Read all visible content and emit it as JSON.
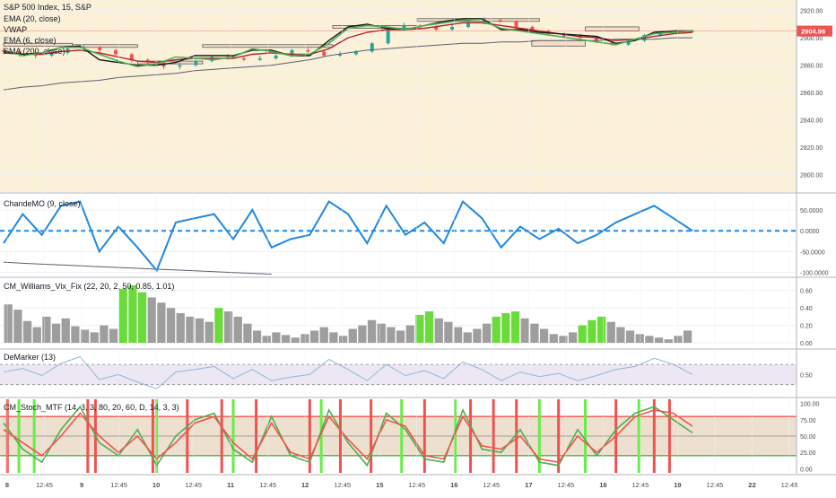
{
  "colors": {
    "price_bg": "#fbf1d9",
    "panel_bg": "#ffffff",
    "grid": "#eef0f3",
    "border": "#b2b5be",
    "text": "#131722",
    "axis_text": "#4a4e59",
    "ema20": "#b7202a",
    "vwap": "#13151d",
    "ema6": "#4caf50",
    "sma200": "#5a5e6e",
    "candle_up": "#26a69a",
    "candle_down": "#ef5350",
    "price_tag": "#ef5350",
    "chande": "#2188e0",
    "vix_gray": "#9e9e9e",
    "vix_green": "#6bdb3c",
    "demarker": "#8fb6d8",
    "demarker_band": "#ece7f3",
    "stoch_k": "#4caf50",
    "stoch_d": "#ef5350",
    "stoch_band": "#ede0cf",
    "stoch_red_bar": "#ef5350",
    "stoch_green_bar": "#66ee44"
  },
  "x_axis": {
    "labels": [
      "8",
      "12:45",
      "9",
      "12:45",
      "10",
      "12:45",
      "11",
      "12:45",
      "12",
      "12:45",
      "15",
      "12:45",
      "16",
      "12:45",
      "17",
      "12:45",
      "18",
      "12:45",
      "19",
      "12:45",
      "22",
      "12:45"
    ],
    "bold": [
      true,
      false,
      true,
      false,
      true,
      false,
      true,
      false,
      true,
      false,
      true,
      false,
      true,
      false,
      true,
      false,
      true,
      false,
      true,
      false,
      true,
      false
    ]
  },
  "chart_data": [
    {
      "type": "line",
      "name": "price-panel",
      "title": "S&P 500 Index, 15, S&P",
      "legend": [
        "EMA (20, close)",
        "VWAP",
        "EMA (6, close)",
        "SMA (200, close)"
      ],
      "ylim": [
        2790,
        2925
      ],
      "yticks": [
        "2920.00",
        "2900.00",
        "2880.00",
        "2860.00",
        "2840.00",
        "2820.00",
        "2800.00"
      ],
      "last_price": "2904.96",
      "last_value": 2904.96,
      "x": [
        0,
        5,
        10,
        15,
        20,
        25,
        30,
        35,
        40,
        45,
        50,
        55,
        60,
        65,
        70,
        75,
        80,
        85,
        90,
        95,
        100,
        105,
        110,
        115,
        120,
        125,
        130,
        135,
        140,
        145,
        150,
        155,
        160,
        165,
        170,
        175,
        180
      ],
      "series": [
        {
          "name": "EMA (6, close)",
          "values": [
            2891,
            2887,
            2889,
            2893,
            2893,
            2888,
            2883,
            2879,
            2881,
            2886,
            2885,
            2884,
            2886,
            2892,
            2890,
            2887,
            2888,
            2896,
            2907,
            2909,
            2908,
            2906,
            2909,
            2911,
            2913,
            2912,
            2907,
            2905,
            2903,
            2901,
            2899,
            2897,
            2895,
            2899,
            2903,
            2904,
            2905
          ]
        },
        {
          "name": "EMA (20, close)",
          "values": [
            2889,
            2888,
            2888,
            2890,
            2891,
            2889,
            2886,
            2883,
            2882,
            2884,
            2885,
            2885,
            2885,
            2888,
            2889,
            2888,
            2888,
            2892,
            2900,
            2904,
            2906,
            2906,
            2907,
            2909,
            2911,
            2911,
            2909,
            2907,
            2905,
            2903,
            2901,
            2900,
            2898,
            2899,
            2901,
            2903,
            2904
          ]
        },
        {
          "name": "VWAP",
          "values": [
            2890,
            2888,
            2889,
            2893,
            2894,
            2884,
            2882,
            2880,
            2880,
            2882,
            2887,
            2887,
            2887,
            2891,
            2891,
            2887,
            2887,
            2898,
            2908,
            2910,
            2907,
            2906,
            2909,
            2912,
            2914,
            2914,
            2906,
            2906,
            2904,
            2903,
            2902,
            2901,
            2896,
            2898,
            2904,
            2905,
            2905
          ]
        },
        {
          "name": "SMA (200, close)",
          "values": [
            2862,
            2864,
            2865,
            2867,
            2868,
            2869,
            2871,
            2872,
            2873,
            2874,
            2876,
            2877,
            2878,
            2879,
            2880,
            2882,
            2884,
            2887,
            2889,
            2891,
            2892,
            2893,
            2894,
            2895,
            2896,
            2896,
            2897,
            2897,
            2898,
            2898,
            2898,
            2898,
            2899,
            2899,
            2899,
            2900,
            2900
          ]
        }
      ],
      "boxes": [
        [
          0,
          2894,
          18,
          2896
        ],
        [
          18,
          2893,
          35,
          2895
        ],
        [
          35,
          2881,
          52,
          2883
        ],
        [
          52,
          2893,
          86,
          2895
        ],
        [
          86,
          2907,
          108,
          2909
        ],
        [
          108,
          2912,
          140,
          2914
        ],
        [
          138,
          2894,
          152,
          2898
        ],
        [
          152,
          2905,
          166,
          2908
        ]
      ],
      "candles": [
        [
          2891,
          2890,
          2893,
          2888
        ],
        [
          2890,
          2888,
          2892,
          2886
        ],
        [
          2888,
          2887,
          2890,
          2885
        ],
        [
          2887,
          2889,
          2891,
          2886
        ],
        [
          2889,
          2892,
          2894,
          2888
        ],
        [
          2892,
          2893,
          2895,
          2891
        ],
        [
          2893,
          2891,
          2894,
          2889
        ],
        [
          2891,
          2888,
          2892,
          2886
        ],
        [
          2888,
          2884,
          2889,
          2882
        ],
        [
          2884,
          2882,
          2885,
          2880
        ],
        [
          2882,
          2879,
          2883,
          2877
        ],
        [
          2879,
          2880,
          2882,
          2877
        ],
        [
          2880,
          2883,
          2884,
          2879
        ],
        [
          2883,
          2886,
          2887,
          2882
        ],
        [
          2886,
          2885,
          2888,
          2884
        ],
        [
          2885,
          2884,
          2887,
          2883
        ],
        [
          2884,
          2885,
          2887,
          2883
        ],
        [
          2885,
          2887,
          2888,
          2884
        ],
        [
          2887,
          2891,
          2892,
          2886
        ],
        [
          2891,
          2890,
          2893,
          2889
        ],
        [
          2890,
          2887,
          2891,
          2886
        ],
        [
          2887,
          2888,
          2890,
          2886
        ],
        [
          2888,
          2890,
          2891,
          2887
        ],
        [
          2890,
          2896,
          2897,
          2889
        ],
        [
          2896,
          2906,
          2908,
          2895
        ],
        [
          2906,
          2909,
          2911,
          2905
        ],
        [
          2909,
          2908,
          2910,
          2906
        ],
        [
          2908,
          2906,
          2909,
          2905
        ],
        [
          2906,
          2908,
          2910,
          2905
        ],
        [
          2908,
          2911,
          2912,
          2907
        ],
        [
          2911,
          2913,
          2915,
          2910
        ],
        [
          2913,
          2912,
          2914,
          2911
        ],
        [
          2912,
          2908,
          2913,
          2906
        ],
        [
          2908,
          2905,
          2909,
          2904
        ],
        [
          2905,
          2903,
          2906,
          2902
        ],
        [
          2903,
          2901,
          2904,
          2900
        ],
        [
          2901,
          2900,
          2903,
          2898
        ],
        [
          2900,
          2897,
          2901,
          2896
        ],
        [
          2897,
          2895,
          2898,
          2894
        ],
        [
          2895,
          2898,
          2899,
          2894
        ],
        [
          2898,
          2902,
          2903,
          2897
        ],
        [
          2902,
          2904,
          2905,
          2901
        ],
        [
          2904,
          2905,
          2906,
          2903
        ],
        [
          2905,
          2905,
          2906,
          2904
        ]
      ]
    },
    {
      "type": "line",
      "name": "chande-panel",
      "title": "ChandeMO (9, close)",
      "ylim": [
        -105,
        80
      ],
      "yticks": [
        "50.0000",
        "0.0000",
        "-50.0000",
        "-100.0000"
      ],
      "zero_line": 0,
      "x": [
        0,
        5,
        10,
        15,
        20,
        25,
        30,
        35,
        40,
        45,
        50,
        55,
        60,
        65,
        70,
        75,
        80,
        85,
        90,
        95,
        100,
        105,
        110,
        115,
        120,
        125,
        130,
        135,
        140,
        145,
        150,
        155,
        160,
        165,
        170,
        175,
        180
      ],
      "series": [
        {
          "name": "ChandeMO",
          "values": [
            -30,
            40,
            -10,
            60,
            70,
            -50,
            10,
            -40,
            -95,
            20,
            30,
            40,
            -20,
            50,
            -40,
            -20,
            -10,
            70,
            40,
            -30,
            60,
            -10,
            20,
            -30,
            70,
            30,
            -40,
            10,
            -20,
            5,
            -30,
            -10,
            20,
            40,
            60,
            30,
            0
          ]
        },
        {
          "name": "DownTrend",
          "values": [
            -75,
            -78,
            -80,
            -82,
            -84,
            -86,
            -88,
            -90,
            -92,
            -94,
            -96,
            -98,
            -100,
            -102,
            -104,
            null,
            null,
            null,
            null,
            null,
            null,
            null,
            null,
            null,
            null,
            null,
            null,
            null,
            null,
            null,
            null,
            null,
            null,
            null,
            null,
            null,
            null
          ]
        }
      ]
    },
    {
      "type": "bar",
      "name": "vix-panel",
      "title": "CM_Williams_Vix_Fix (22, 20, 2, 50, 0.85, 1.01)",
      "ylim": [
        -0.02,
        0.7
      ],
      "yticks": [
        "0.60",
        "0.40",
        "0.20",
        "0.00"
      ],
      "values": [
        0.44,
        0.38,
        0.25,
        0.18,
        0.3,
        0.22,
        0.28,
        0.19,
        0.15,
        0.12,
        0.2,
        0.16,
        0.62,
        0.66,
        0.58,
        0.52,
        0.46,
        0.4,
        0.34,
        0.3,
        0.28,
        0.24,
        0.4,
        0.36,
        0.3,
        0.22,
        0.14,
        0.08,
        0.12,
        0.09,
        0.06,
        0.1,
        0.14,
        0.18,
        0.12,
        0.08,
        0.16,
        0.2,
        0.26,
        0.22,
        0.18,
        0.14,
        0.2,
        0.32,
        0.36,
        0.28,
        0.24,
        0.18,
        0.12,
        0.16,
        0.22,
        0.3,
        0.34,
        0.36,
        0.28,
        0.22,
        0.16,
        0.1,
        0.08,
        0.12,
        0.2,
        0.26,
        0.3,
        0.24,
        0.18,
        0.14,
        0.1,
        0.08,
        0.06,
        0.04,
        0.08,
        0.14
      ],
      "highlight": [
        false,
        false,
        false,
        false,
        false,
        false,
        false,
        false,
        false,
        false,
        false,
        false,
        true,
        true,
        true,
        false,
        false,
        false,
        false,
        false,
        false,
        false,
        true,
        false,
        false,
        false,
        false,
        false,
        false,
        false,
        false,
        false,
        false,
        false,
        false,
        false,
        false,
        false,
        false,
        false,
        false,
        false,
        false,
        true,
        true,
        false,
        false,
        false,
        false,
        false,
        false,
        true,
        true,
        true,
        false,
        false,
        false,
        false,
        false,
        false,
        true,
        true,
        true,
        false,
        false,
        false,
        false,
        false,
        false,
        false,
        false,
        false
      ]
    },
    {
      "type": "line",
      "name": "demarker-panel",
      "title": "DeMarker (13)",
      "ylim": [
        0.1,
        0.95
      ],
      "yticks": [
        "0.50"
      ],
      "band": [
        0.3,
        0.7
      ],
      "x": [
        0,
        5,
        10,
        15,
        20,
        25,
        30,
        35,
        40,
        45,
        50,
        55,
        60,
        65,
        70,
        75,
        80,
        85,
        90,
        95,
        100,
        105,
        110,
        115,
        120,
        125,
        130,
        135,
        140,
        145,
        150,
        155,
        160,
        165,
        170,
        175,
        180
      ],
      "series": [
        {
          "name": "DeMarker",
          "values": [
            0.55,
            0.62,
            0.48,
            0.72,
            0.85,
            0.4,
            0.5,
            0.35,
            0.22,
            0.55,
            0.6,
            0.66,
            0.42,
            0.6,
            0.38,
            0.45,
            0.5,
            0.8,
            0.6,
            0.38,
            0.7,
            0.48,
            0.58,
            0.42,
            0.75,
            0.6,
            0.38,
            0.55,
            0.46,
            0.52,
            0.38,
            0.48,
            0.6,
            0.66,
            0.82,
            0.7,
            0.5
          ]
        }
      ]
    },
    {
      "type": "line",
      "name": "stoch-panel",
      "title": "CM_Stoch_MTF (14, 3, 3, 80, 20, 60, D, 14, 3, 3)",
      "ylim": [
        -5,
        105
      ],
      "yticks": [
        "100.00",
        "75.00",
        "50.00",
        "25.00",
        "0.00"
      ],
      "upper": 80,
      "middle": 50,
      "lower": 20,
      "x": [
        0,
        5,
        10,
        15,
        20,
        25,
        30,
        35,
        40,
        45,
        50,
        55,
        60,
        65,
        70,
        75,
        80,
        85,
        90,
        95,
        100,
        105,
        110,
        115,
        120,
        125,
        130,
        135,
        140,
        145,
        150,
        155,
        160,
        165,
        170,
        175,
        180
      ],
      "series": [
        {
          "name": "%K",
          "values": [
            70,
            30,
            10,
            60,
            95,
            40,
            20,
            60,
            5,
            50,
            75,
            85,
            30,
            10,
            80,
            20,
            10,
            90,
            40,
            5,
            85,
            60,
            15,
            10,
            90,
            30,
            25,
            60,
            10,
            5,
            60,
            20,
            60,
            85,
            95,
            75,
            55
          ]
        },
        {
          "name": "%D",
          "values": [
            60,
            40,
            20,
            50,
            85,
            50,
            25,
            50,
            15,
            40,
            70,
            80,
            40,
            15,
            70,
            25,
            15,
            80,
            45,
            15,
            75,
            65,
            20,
            15,
            80,
            35,
            30,
            50,
            15,
            10,
            50,
            25,
            50,
            80,
            90,
            85,
            65
          ]
        }
      ],
      "green_bars": [
        4,
        8,
        40,
        60,
        83,
        104,
        118,
        140,
        152,
        166
      ],
      "red_bars": [
        1,
        22,
        24,
        39,
        48,
        57,
        66,
        80,
        88,
        96,
        110,
        122,
        128,
        134,
        145,
        160,
        170,
        174
      ]
    }
  ]
}
